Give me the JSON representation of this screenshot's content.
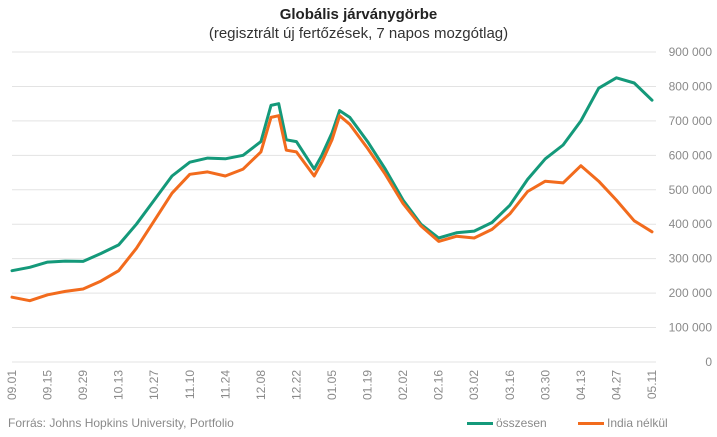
{
  "chart_data": {
    "type": "line",
    "title": "Globális járványgörbe",
    "subtitle": "(regisztrált új fertőzések, 7 napos mozgótlag)",
    "source": "Forrás: Johns Hopkins University, Portfolio",
    "x_tick_labels": [
      "09.01",
      "09.15",
      "09.29",
      "10.13",
      "10.27",
      "11.10",
      "11.24",
      "12.08",
      "12.22",
      "01.05",
      "01.19",
      "02.02",
      "02.16",
      "03.02",
      "03.16",
      "03.30",
      "04.13",
      "04.27",
      "05.11"
    ],
    "y_tick_labels": [
      "0",
      "100 000",
      "200 000",
      "300 000",
      "400 000",
      "500 000",
      "600 000",
      "700 000",
      "800 000",
      "900 000"
    ],
    "ylim": [
      0,
      900000
    ],
    "grid": true,
    "legend_position": "bottom-right",
    "series": [
      {
        "name": "összesen",
        "color": "#14997a",
        "x": [
          "2020-09-01",
          "2020-09-08",
          "2020-09-15",
          "2020-09-22",
          "2020-09-29",
          "2020-10-06",
          "2020-10-13",
          "2020-10-20",
          "2020-10-27",
          "2020-11-03",
          "2020-11-10",
          "2020-11-17",
          "2020-11-24",
          "2020-12-01",
          "2020-12-08",
          "2020-12-12",
          "2020-12-15",
          "2020-12-18",
          "2020-12-22",
          "2020-12-29",
          "2021-01-01",
          "2021-01-05",
          "2021-01-08",
          "2021-01-12",
          "2021-01-19",
          "2021-01-26",
          "2021-02-02",
          "2021-02-09",
          "2021-02-16",
          "2021-02-23",
          "2021-03-02",
          "2021-03-09",
          "2021-03-16",
          "2021-03-23",
          "2021-03-30",
          "2021-04-06",
          "2021-04-13",
          "2021-04-20",
          "2021-04-27",
          "2021-05-04",
          "2021-05-11"
        ],
        "y": [
          265000,
          275000,
          290000,
          293000,
          292000,
          315000,
          340000,
          400000,
          470000,
          540000,
          580000,
          592000,
          590000,
          600000,
          640000,
          745000,
          750000,
          645000,
          640000,
          560000,
          600000,
          665000,
          730000,
          710000,
          640000,
          560000,
          470000,
          400000,
          360000,
          375000,
          380000,
          405000,
          455000,
          530000,
          590000,
          630000,
          700000,
          795000,
          825000,
          810000,
          760000
        ]
      },
      {
        "name": "India nélkül",
        "color": "#f26b1d",
        "x": [
          "2020-09-01",
          "2020-09-08",
          "2020-09-15",
          "2020-09-22",
          "2020-09-29",
          "2020-10-06",
          "2020-10-13",
          "2020-10-20",
          "2020-10-27",
          "2020-11-03",
          "2020-11-10",
          "2020-11-17",
          "2020-11-24",
          "2020-12-01",
          "2020-12-08",
          "2020-12-12",
          "2020-12-15",
          "2020-12-18",
          "2020-12-22",
          "2020-12-29",
          "2021-01-01",
          "2021-01-05",
          "2021-01-08",
          "2021-01-12",
          "2021-01-19",
          "2021-01-26",
          "2021-02-02",
          "2021-02-09",
          "2021-02-16",
          "2021-02-23",
          "2021-03-02",
          "2021-03-09",
          "2021-03-16",
          "2021-03-23",
          "2021-03-30",
          "2021-04-06",
          "2021-04-13",
          "2021-04-20",
          "2021-04-27",
          "2021-05-04",
          "2021-05-11"
        ],
        "y": [
          188000,
          178000,
          195000,
          205000,
          212000,
          235000,
          265000,
          330000,
          410000,
          490000,
          545000,
          552000,
          540000,
          560000,
          610000,
          710000,
          715000,
          615000,
          610000,
          540000,
          580000,
          645000,
          715000,
          690000,
          620000,
          545000,
          460000,
          395000,
          350000,
          365000,
          360000,
          385000,
          430000,
          495000,
          525000,
          520000,
          570000,
          525000,
          470000,
          410000,
          378000
        ]
      }
    ]
  }
}
